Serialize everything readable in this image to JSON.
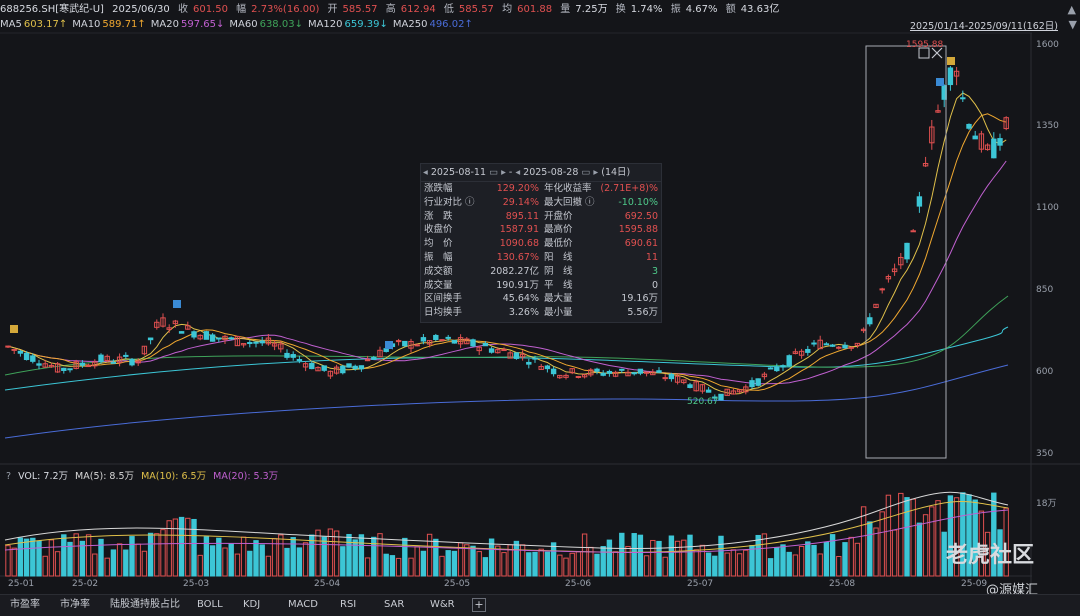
{
  "header": {
    "code": "688256.SH[寒武纪-U]",
    "date": "2025/06/30",
    "close_label": "收",
    "close": "601.50",
    "change_label": "幅",
    "change": "2.73%(16.00)",
    "open_label": "开",
    "open": "585.57",
    "high_label": "高",
    "high": "612.94",
    "low_label": "低",
    "low": "585.57",
    "avg_label": "均",
    "avg": "601.88",
    "vol_label": "量",
    "vol": "7.25万",
    "turnover_label": "换",
    "turnover": "1.74%",
    "amp_label": "振",
    "amp": "4.67%",
    "amount_label": "额",
    "amount": "43.63亿",
    "range": "2025/01/14-2025/09/11(162日)"
  },
  "ma": [
    {
      "name": "MA5",
      "value": "603.17↑",
      "color": "#e0c04a"
    },
    {
      "name": "MA10",
      "value": "589.71↑",
      "color": "#f0a830"
    },
    {
      "name": "MA20",
      "value": "597.65↓",
      "color": "#c060d0"
    },
    {
      "name": "MA60",
      "value": "638.03↓",
      "color": "#3fa35a"
    },
    {
      "name": "MA120",
      "value": "659.39↓",
      "color": "#3cc6d6"
    },
    {
      "name": "MA250",
      "value": "496.02↑",
      "color": "#4a6cd8"
    }
  ],
  "y_axis": [
    "1600",
    "1350",
    "1100",
    "850",
    "600",
    "350"
  ],
  "x_axis": [
    "25-01",
    "25-02",
    "25-03",
    "25-04",
    "25-05",
    "25-06",
    "25-07",
    "25-08",
    "25-09"
  ],
  "labels": {
    "peak": "1595.88",
    "low": "520.67",
    "vol_scale": "18万"
  },
  "panel": {
    "start": "2025-08-11",
    "end": "2025-08-28",
    "days": "(14日)",
    "rows": [
      {
        "l": "涨跌幅",
        "v": "129.20%",
        "vc": "#e05050",
        "l2": "年化收益率",
        "v2": "(2.71E+8)%",
        "vc2": "#e05050"
      },
      {
        "l": "行业对比 ⓘ",
        "v": "29.14%",
        "vc": "#e05050",
        "l2": "最大回撤 ⓘ",
        "v2": "-10.10%",
        "vc2": "#4ec98a"
      },
      {
        "l": "涨　跌",
        "v": "895.11",
        "vc": "#e05050",
        "l2": "开盘价",
        "v2": "692.50",
        "vc2": "#e05050"
      },
      {
        "l": "收盘价",
        "v": "1587.91",
        "vc": "#e05050",
        "l2": "最高价",
        "v2": "1595.88",
        "vc2": "#e05050"
      },
      {
        "l": "均　价",
        "v": "1090.68",
        "vc": "#e05050",
        "l2": "最低价",
        "v2": "690.61",
        "vc2": "#e05050"
      },
      {
        "l": "振　幅",
        "v": "130.67%",
        "vc": "#e05050",
        "l2": "阳　线",
        "v2": "11",
        "vc2": "#e05050"
      },
      {
        "l": "成交额",
        "v": "2082.27亿",
        "vc": "#c5c8d0",
        "l2": "阴　线",
        "v2": "3",
        "vc2": "#4ec98a"
      },
      {
        "l": "成交量",
        "v": "190.91万",
        "vc": "#c5c8d0",
        "l2": "平　线",
        "v2": "0",
        "vc2": "#c5c8d0"
      },
      {
        "l": "区间换手",
        "v": "45.64%",
        "vc": "#c5c8d0",
        "l2": "最大量",
        "v2": "19.16万",
        "vc2": "#c5c8d0"
      },
      {
        "l": "日均换手",
        "v": "3.26%",
        "vc": "#c5c8d0",
        "l2": "最小量",
        "v2": "5.56万",
        "vc2": "#c5c8d0"
      }
    ]
  },
  "vol": {
    "q": "?",
    "vol": "VOL: 7.2万",
    "ma5": "MA(5): 8.5万",
    "ma10": "MA(10): 6.5万",
    "ma20": "MA(20): 5.3万",
    "ma5_color": "#d8d8d8",
    "ma10_color": "#e0c04a",
    "ma20_color": "#c060d0"
  },
  "tabs": [
    "市盈率",
    "市净率",
    "陆股通持股占比",
    "BOLL",
    "KDJ",
    "MACD",
    "RSI",
    "SAR",
    "W&R"
  ],
  "watermark": {
    "brand": "老虎社区",
    "author": "@源媒汇"
  }
}
